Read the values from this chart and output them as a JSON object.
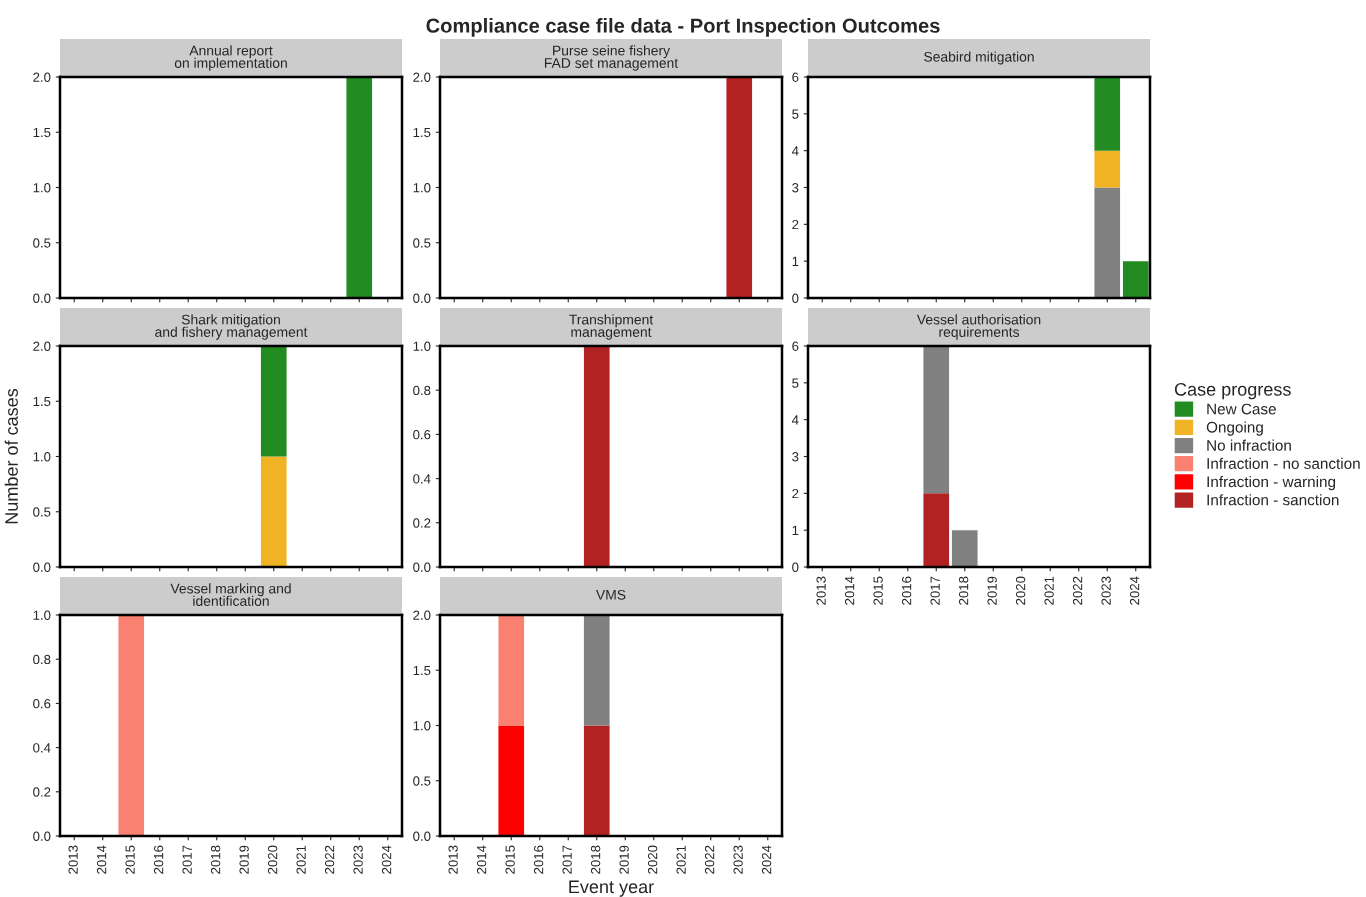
{
  "chart_data": [
    {
      "type": "bar",
      "stacked": true,
      "subtitle": "Annual report\non implementation",
      "tick_labels": "y",
      "categories": [
        "2013",
        "2014",
        "2015",
        "2016",
        "2017",
        "2018",
        "2019",
        "2020",
        "2021",
        "2022",
        "2023",
        "2024"
      ],
      "ylim": [
        0,
        2
      ],
      "yticks": [
        {
          "value": 0,
          "label": "0.0"
        },
        {
          "value": 0.5,
          "label": "0.5"
        },
        {
          "value": 1,
          "label": "1.0"
        },
        {
          "value": 1.5,
          "label": "1.5"
        },
        {
          "value": 2,
          "label": "2.0"
        }
      ],
      "series": [
        {
          "color": "#228b22",
          "values": [
            null,
            null,
            null,
            null,
            null,
            null,
            null,
            null,
            null,
            null,
            2,
            null
          ]
        }
      ]
    },
    {
      "type": "bar",
      "stacked": true,
      "title": "Compliance case file data - Port Inspection Outcomes",
      "subtitle": "Purse seine fishery\nFAD set management",
      "tick_labels": "y",
      "categories": [
        "2013",
        "2014",
        "2015",
        "2016",
        "2017",
        "2018",
        "2019",
        "2020",
        "2021",
        "2022",
        "2023",
        "2024"
      ],
      "ylim": [
        0,
        2
      ],
      "yticks": [
        {
          "value": 0,
          "label": "0.0"
        },
        {
          "value": 0.5,
          "label": "0.5"
        },
        {
          "value": 1,
          "label": "1.0"
        },
        {
          "value": 1.5,
          "label": "1.5"
        },
        {
          "value": 2,
          "label": "2.0"
        }
      ],
      "series": [
        {
          "color": "#b22222",
          "values": [
            null,
            null,
            null,
            null,
            null,
            null,
            null,
            null,
            null,
            null,
            2,
            null
          ]
        }
      ]
    },
    {
      "type": "bar",
      "stacked": true,
      "subtitle": "Seabird mitigation",
      "tick_labels": "y",
      "categories": [
        "2013",
        "2014",
        "2015",
        "2016",
        "2017",
        "2018",
        "2019",
        "2020",
        "2021",
        "2022",
        "2023",
        "2024"
      ],
      "ylim": [
        0,
        6
      ],
      "yticks": [
        0,
        1,
        2,
        3,
        4,
        5,
        6
      ],
      "series": [
        {
          "color": "#808080",
          "values": [
            null,
            null,
            null,
            null,
            null,
            null,
            null,
            null,
            null,
            null,
            3,
            null
          ]
        },
        {
          "color": "#f0b323",
          "values": [
            null,
            null,
            null,
            null,
            null,
            null,
            null,
            null,
            null,
            null,
            1,
            null
          ]
        },
        {
          "color": "#228b22",
          "values": [
            null,
            null,
            null,
            null,
            null,
            null,
            null,
            null,
            null,
            null,
            2,
            1
          ]
        }
      ]
    },
    {
      "type": "bar",
      "stacked": true,
      "subtitle": "Shark mitigation\nand fishery management",
      "ylabel": "Number of cases",
      "tick_labels": "y",
      "categories": [
        "2013",
        "2014",
        "2015",
        "2016",
        "2017",
        "2018",
        "2019",
        "2020",
        "2021",
        "2022",
        "2023",
        "2024"
      ],
      "ylim": [
        0,
        2
      ],
      "yticks": [
        {
          "value": 0,
          "label": "0.0"
        },
        {
          "value": 0.5,
          "label": "0.5"
        },
        {
          "value": 1,
          "label": "1.0"
        },
        {
          "value": 1.5,
          "label": "1.5"
        },
        {
          "value": 2,
          "label": "2.0"
        }
      ],
      "series": [
        {
          "color": "#f0b323",
          "values": [
            null,
            null,
            null,
            null,
            null,
            null,
            null,
            1,
            null,
            null,
            null,
            null
          ]
        },
        {
          "color": "#228b22",
          "values": [
            null,
            null,
            null,
            null,
            null,
            null,
            null,
            1,
            null,
            null,
            null,
            null
          ]
        }
      ]
    },
    {
      "type": "bar",
      "stacked": true,
      "subtitle": "Transhipment\nmanagement",
      "tick_labels": "y",
      "categories": [
        "2013",
        "2014",
        "2015",
        "2016",
        "2017",
        "2018",
        "2019",
        "2020",
        "2021",
        "2022",
        "2023",
        "2024"
      ],
      "ylim": [
        0,
        1
      ],
      "yticks": [
        {
          "value": 0,
          "label": "0.0"
        },
        {
          "value": 0.2,
          "label": "0.2"
        },
        {
          "value": 0.4,
          "label": "0.4"
        },
        {
          "value": 0.6,
          "label": "0.6"
        },
        {
          "value": 0.8,
          "label": "0.8"
        },
        {
          "value": 1,
          "label": "1.0"
        }
      ],
      "series": [
        {
          "color": "#b22222",
          "values": [
            null,
            null,
            null,
            null,
            null,
            1,
            null,
            null,
            null,
            null,
            null,
            null
          ]
        }
      ]
    },
    {
      "type": "bar",
      "stacked": true,
      "subtitle": "Vessel authorisation\nrequirements",
      "legend": "right",
      "legend_title": "Case progress",
      "categories": [
        "2013",
        "2014",
        "2015",
        "2016",
        "2017",
        "2018",
        "2019",
        "2020",
        "2021",
        "2022",
        "2023",
        "2024"
      ],
      "ylim": [
        0,
        6
      ],
      "yticks": [
        0,
        1,
        2,
        3,
        4,
        5,
        6
      ],
      "series": [
        {
          "name": "Infraction - sanction",
          "color": "#b22222",
          "values": [
            null,
            null,
            null,
            null,
            2,
            null,
            null,
            null,
            null,
            null,
            null,
            null
          ]
        },
        {
          "name": "Infraction - warning",
          "color": "#ff0000",
          "values": [
            null,
            null,
            null,
            null,
            null,
            null,
            null,
            null,
            null,
            null,
            null,
            null
          ]
        },
        {
          "name": "Infraction - no sanction",
          "color": "#fa8072",
          "values": [
            null,
            null,
            null,
            null,
            null,
            null,
            null,
            null,
            null,
            null,
            null,
            null
          ]
        },
        {
          "name": "No infraction",
          "color": "#808080",
          "values": [
            null,
            null,
            null,
            null,
            4,
            1,
            null,
            null,
            null,
            null,
            null,
            null
          ]
        },
        {
          "name": "Ongoing",
          "color": "#f0b323",
          "values": [
            null,
            null,
            null,
            null,
            null,
            null,
            null,
            null,
            null,
            null,
            null,
            null
          ]
        },
        {
          "name": "New Case",
          "color": "#228b22",
          "values": [
            null,
            null,
            null,
            null,
            null,
            null,
            null,
            null,
            null,
            null,
            null,
            null
          ]
        }
      ]
    },
    {
      "type": "bar",
      "stacked": true,
      "subtitle": "Vessel marking and\nidentification",
      "categories": [
        "2013",
        "2014",
        "2015",
        "2016",
        "2017",
        "2018",
        "2019",
        "2020",
        "2021",
        "2022",
        "2023",
        "2024"
      ],
      "ylim": [
        0,
        1
      ],
      "yticks": [
        {
          "value": 0,
          "label": "0.0"
        },
        {
          "value": 0.2,
          "label": "0.2"
        },
        {
          "value": 0.4,
          "label": "0.4"
        },
        {
          "value": 0.6,
          "label": "0.6"
        },
        {
          "value": 0.8,
          "label": "0.8"
        },
        {
          "value": 1,
          "label": "1.0"
        }
      ],
      "series": [
        {
          "color": "#fa8072",
          "values": [
            null,
            null,
            1,
            null,
            null,
            null,
            null,
            null,
            null,
            null,
            null,
            null
          ]
        }
      ]
    },
    {
      "type": "bar",
      "stacked": true,
      "subtitle": "VMS",
      "xlabel": "Event year",
      "categories": [
        "2013",
        "2014",
        "2015",
        "2016",
        "2017",
        "2018",
        "2019",
        "2020",
        "2021",
        "2022",
        "2023",
        "2024"
      ],
      "ylim": [
        0,
        2
      ],
      "yticks": [
        {
          "value": 0,
          "label": "0.0"
        },
        {
          "value": 0.5,
          "label": "0.5"
        },
        {
          "value": 1,
          "label": "1.0"
        },
        {
          "value": 1.5,
          "label": "1.5"
        },
        {
          "value": 2,
          "label": "2.0"
        }
      ],
      "series": [
        {
          "color": "#b22222",
          "values": [
            null,
            null,
            null,
            null,
            null,
            1,
            null,
            null,
            null,
            null,
            null,
            null
          ]
        },
        {
          "color": "#ff0000",
          "values": [
            null,
            null,
            1,
            null,
            null,
            null,
            null,
            null,
            null,
            null,
            null,
            null
          ]
        },
        {
          "color": "#fa8072",
          "values": [
            null,
            null,
            1,
            null,
            null,
            null,
            null,
            null,
            null,
            null,
            null,
            null
          ]
        },
        {
          "color": "#808080",
          "values": [
            null,
            null,
            null,
            null,
            null,
            1,
            null,
            null,
            null,
            null,
            null,
            null
          ]
        }
      ]
    }
  ]
}
